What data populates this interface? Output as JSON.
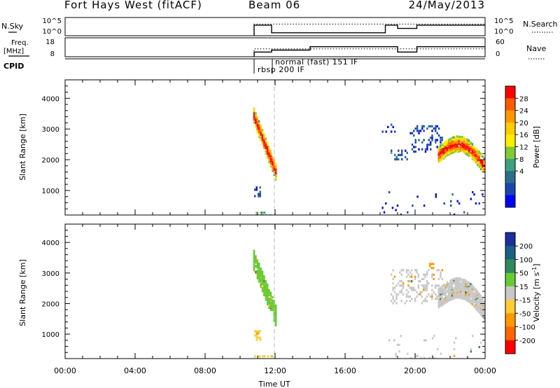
{
  "header": {
    "station": "Fort Hays West (fitACF)",
    "beam": "Beam 06",
    "date": "24/May/2013"
  },
  "params": {
    "nsky_label": "N.Sky",
    "nsearch_label": "N.Search",
    "freq_label_1": "Freq.",
    "freq_label_2": "[MHz]",
    "nave_label": "Nave",
    "cpid_label": "CPID",
    "cpid_text_1": "rbsp 200 IF",
    "cpid_text_2": "normal (fast) 151 IF",
    "nsky_ticks": [
      "10^5",
      "10^0"
    ],
    "nsearch_ticks": [
      "10^5",
      "10^0"
    ],
    "freq_ticks": [
      "18",
      "8"
    ],
    "nave_ticks": [
      "60",
      "0"
    ]
  },
  "chart_data": [
    {
      "type": "line",
      "panel": "noise",
      "ylim_log10": [
        0,
        5
      ],
      "series": [
        {
          "name": "N.Sky",
          "style": "solid",
          "x_hours": [
            10.8,
            10.8,
            11.8,
            11.8,
            18.3,
            18.3,
            19.0,
            19.0,
            20.1,
            20.1,
            24.0
          ],
          "y_log10": [
            -0.5,
            2.9,
            2.9,
            0.8,
            0.8,
            2.9,
            2.9,
            2.0,
            2.0,
            2.9,
            2.9
          ]
        },
        {
          "name": "N.Search",
          "style": "dotted",
          "x_hours": [
            10.8,
            10.8,
            24.0
          ],
          "y_log10": [
            -0.5,
            3.2,
            3.2
          ]
        }
      ]
    },
    {
      "type": "line",
      "panel": "freq_nave",
      "series": [
        {
          "name": "Freq.",
          "style": "solid",
          "ylim": [
            8,
            18
          ],
          "x_hours": [
            10.8,
            10.8,
            11.8,
            11.8,
            14.0,
            14.0,
            19.0,
            19.0,
            20.1,
            20.1,
            24.0
          ],
          "y": [
            8,
            10.5,
            10.5,
            11.5,
            11.5,
            13.3,
            13.3,
            10.5,
            10.5,
            13.3,
            13.3
          ]
        },
        {
          "name": "Nave",
          "style": "dotted",
          "ylim": [
            0,
            60
          ],
          "x_hours": [
            10.8,
            10.8,
            24.0
          ],
          "y": [
            0,
            25,
            25
          ]
        }
      ]
    },
    {
      "type": "heatmap",
      "panel": "power",
      "xlabel": "",
      "ylabel": "Slant Range [km]",
      "xlim_hours": [
        0,
        24
      ],
      "ylim": [
        200,
        4600
      ],
      "yticks": [
        1000,
        2000,
        3000,
        4000
      ],
      "colorbar": {
        "label": "Power [dB]",
        "ticks": [
          "28",
          "24",
          "20",
          "16",
          "12",
          "8",
          "4"
        ],
        "colors": [
          "#ff0000",
          "#ff5a00",
          "#ff9900",
          "#ffcc00",
          "#ffee00",
          "#7fcc33",
          "#3fa07f",
          "#2a6e8a",
          "#1a46b0",
          "#0000ff"
        ]
      },
      "features": [
        {
          "kind": "trace",
          "t0": 10.75,
          "t1": 12.0,
          "r0": 3450,
          "r1": 1650,
          "width": 260,
          "intensity": 0.75
        },
        {
          "kind": "trace",
          "t0": 21.3,
          "t1": 24.0,
          "r0": 2200,
          "r1": 1750,
          "width": 260,
          "intensity": 0.7,
          "curve": 550
        },
        {
          "kind": "patch",
          "t0": 18.6,
          "t1": 19.6,
          "r0": 2050,
          "r1": 2400,
          "density": 0.5,
          "intensity": 0.25
        },
        {
          "kind": "patch",
          "t0": 19.6,
          "t1": 21.6,
          "r0": 2300,
          "r1": 3200,
          "density": 0.28,
          "intensity": 0.2
        },
        {
          "kind": "patch",
          "t0": 10.8,
          "t1": 11.2,
          "r0": 850,
          "r1": 1200,
          "density": 0.5,
          "intensity": 0.2
        },
        {
          "kind": "patch",
          "t0": 18.0,
          "t1": 24.0,
          "r0": 250,
          "r1": 1050,
          "density": 0.05,
          "intensity": 0.1
        },
        {
          "kind": "patch",
          "t0": 18.0,
          "t1": 19.0,
          "r0": 2950,
          "r1": 3250,
          "density": 0.15,
          "intensity": 0.1
        },
        {
          "kind": "patch",
          "t0": 10.8,
          "t1": 12.0,
          "r0": 220,
          "r1": 400,
          "density": 0.45,
          "intensity": 0.35
        }
      ]
    },
    {
      "type": "heatmap",
      "panel": "velocity",
      "xlabel": "Time UT",
      "ylabel": "Slant Range [km]",
      "xlim_hours": [
        0,
        24
      ],
      "xticks": [
        "00:00",
        "04:00",
        "08:00",
        "12:00",
        "16:00",
        "20:00",
        "00:00"
      ],
      "ylim": [
        200,
        4600
      ],
      "yticks": [
        1000,
        2000,
        3000,
        4000
      ],
      "colorbar": {
        "label": "Velocity [m s",
        "label_sup": "-1",
        "label_close": "]",
        "ticks": [
          "200",
          "100",
          "50",
          "15",
          "-15",
          "-50",
          "-100",
          "-200"
        ],
        "colors": [
          "#1a2ea0",
          "#1a6080",
          "#2e8a5a",
          "#66cc33",
          "#c8c8c8",
          "#ffcc33",
          "#ff9900",
          "#ff6600",
          "#ff0000"
        ]
      },
      "features": [
        {
          "kind": "trace",
          "t0": 10.75,
          "t1": 12.0,
          "r0": 3450,
          "r1": 1650,
          "width": 300,
          "color": "#66cc33"
        },
        {
          "kind": "trace",
          "t0": 21.3,
          "t1": 24.0,
          "r0": 2200,
          "r1": 1750,
          "width": 300,
          "color": "#c8c8c8",
          "curve": 550
        },
        {
          "kind": "patch",
          "t0": 18.6,
          "t1": 21.6,
          "r0": 2050,
          "r1": 3200,
          "density": 0.35,
          "color": "#c8c8c8"
        },
        {
          "kind": "patch",
          "t0": 10.8,
          "t1": 11.2,
          "r0": 850,
          "r1": 1200,
          "density": 0.5,
          "color": "#ffcc33"
        },
        {
          "kind": "patch",
          "t0": 18.0,
          "t1": 24.0,
          "r0": 250,
          "r1": 1050,
          "density": 0.05,
          "color": "#c8c8c8"
        },
        {
          "kind": "patch",
          "t0": 10.8,
          "t1": 12.0,
          "r0": 220,
          "r1": 400,
          "density": 0.45,
          "color": "#ffcc33"
        },
        {
          "kind": "patch",
          "t0": 20.8,
          "t1": 21.1,
          "r0": 3200,
          "r1": 3400,
          "density": 0.7,
          "color": "#ff9900"
        }
      ]
    }
  ]
}
